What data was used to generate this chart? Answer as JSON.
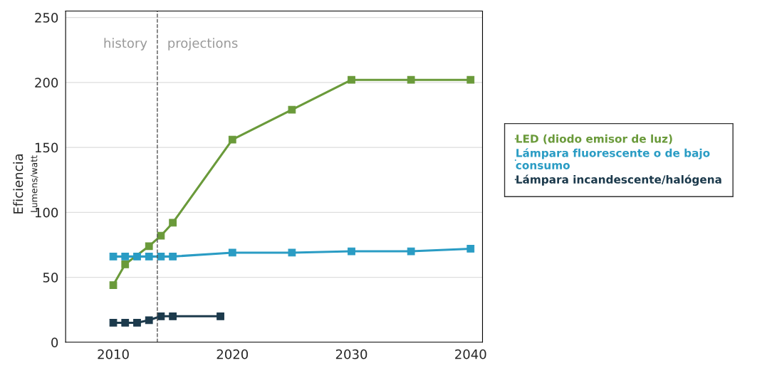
{
  "chart_data": {
    "type": "line",
    "ylabel": "Eficiencia\nLumens/watt",
    "xlim": [
      2006,
      2041
    ],
    "ylim": [
      0,
      255
    ],
    "xticks": [
      2010,
      2020,
      2030,
      2040
    ],
    "yticks": [
      0,
      50,
      100,
      150,
      200,
      250
    ],
    "grid": "y",
    "legend": "right",
    "marker": "square",
    "line_style": "solid",
    "ref_lines": [
      {
        "axis": "x",
        "value": 2013.7,
        "label": null,
        "color": "#555555",
        "line_style": "dashed"
      }
    ],
    "annotations": [
      "history",
      "projections"
    ],
    "series": [
      {
        "name": "LED (diodo emisor de luz)",
        "color": "#6a9a3a",
        "x": [
          2010,
          2011,
          2013,
          2014,
          2015,
          2020,
          2025,
          2030,
          2035,
          2040
        ],
        "values": [
          44,
          60,
          74,
          82,
          92,
          156,
          179,
          202,
          202,
          202
        ]
      },
      {
        "name": "Lámpara fluorescente o de bajo\nconsumo",
        "color": "#2a9cc4",
        "x": [
          2010,
          2011,
          2012,
          2013,
          2014,
          2015,
          2020,
          2025,
          2030,
          2035,
          2040
        ],
        "values": [
          66,
          66,
          66,
          66,
          66,
          66,
          69,
          69,
          70,
          70,
          72
        ]
      },
      {
        "name": "Lámpara incandescente/halógena",
        "color": "#1c3a4c",
        "x": [
          2010,
          2011,
          2012,
          2013,
          2014,
          2015,
          2019
        ],
        "values": [
          15,
          15,
          15,
          17,
          20,
          20,
          20
        ]
      }
    ]
  }
}
